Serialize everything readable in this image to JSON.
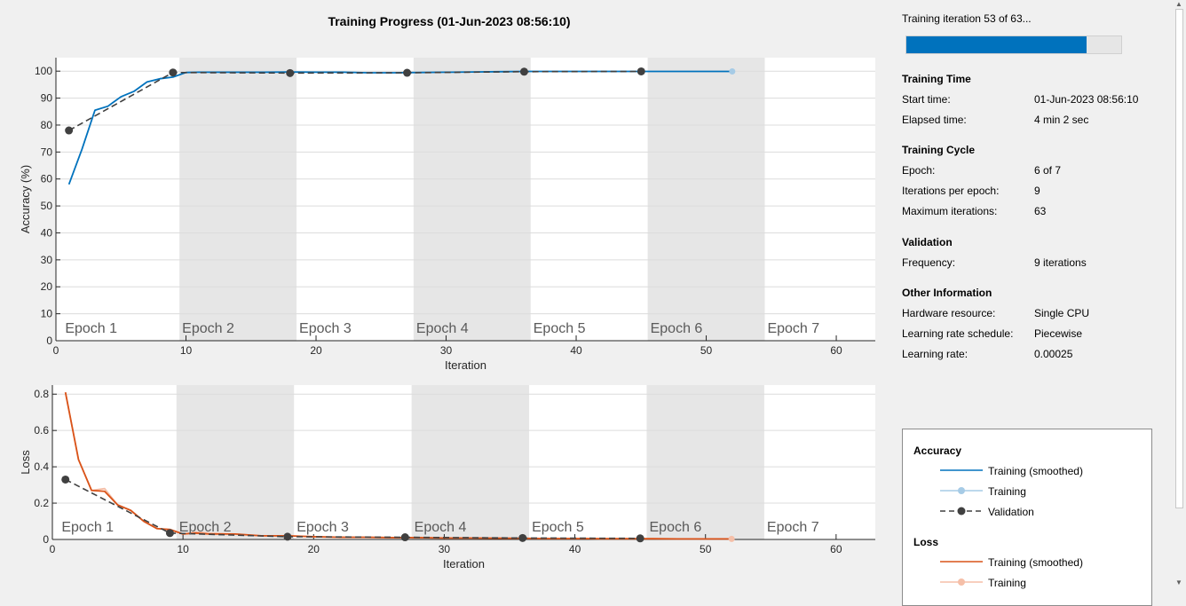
{
  "figure": {
    "title": "Training Progress (01-Jun-2023 08:56:10)"
  },
  "chart_data": [
    {
      "type": "line",
      "xlabel": "Iteration",
      "ylabel": "Accuracy (%)",
      "xlim": [
        0,
        63
      ],
      "ylim": [
        0,
        105
      ],
      "xticks": [
        "0",
        "10",
        "20",
        "30",
        "40",
        "50",
        "60"
      ],
      "yticks": [
        "0",
        "10",
        "20",
        "30",
        "40",
        "50",
        "60",
        "70",
        "80",
        "90",
        "100"
      ],
      "epoch_labels": [
        "Epoch 1",
        "Epoch 2",
        "Epoch 3",
        "Epoch 4",
        "Epoch 5",
        "Epoch 6",
        "Epoch 7"
      ],
      "grid": true,
      "series": [
        {
          "name": "Training (smoothed)",
          "color": "#0072bd",
          "x": [
            1,
            2,
            3,
            4,
            5,
            6,
            7,
            8,
            9,
            10,
            11,
            12,
            14,
            16,
            18,
            20,
            22,
            24,
            26,
            28,
            30,
            32,
            34,
            36,
            38,
            40,
            42,
            44,
            46,
            48,
            50,
            52
          ],
          "y": [
            58,
            71,
            85.5,
            87,
            90.5,
            92.5,
            96,
            97.2,
            97.8,
            99.5,
            99.6,
            99.6,
            99.6,
            99.6,
            99.7,
            99.6,
            99.6,
            99.4,
            99.4,
            99.5,
            99.6,
            99.7,
            99.8,
            99.9,
            99.9,
            99.9,
            99.9,
            99.9,
            99.9,
            99.9,
            99.9,
            99.9
          ]
        },
        {
          "name": "Validation",
          "color": "#404040",
          "style": "dashed-markers",
          "x": [
            1,
            9,
            18,
            27,
            36,
            45
          ],
          "y": [
            78,
            99.5,
            99.3,
            99.4,
            99.8,
            99.9
          ]
        }
      ],
      "final_point": {
        "x": 52,
        "y": 99.9,
        "color": "#a6cbe6"
      }
    },
    {
      "type": "line",
      "xlabel": "Iteration",
      "ylabel": "Loss",
      "xlim": [
        0,
        63
      ],
      "ylim": [
        0,
        0.85
      ],
      "xticks": [
        "0",
        "10",
        "20",
        "30",
        "40",
        "50",
        "60"
      ],
      "yticks": [
        "0",
        "0.2",
        "0.4",
        "0.6",
        "0.8"
      ],
      "epoch_labels": [
        "Epoch 1",
        "Epoch 2",
        "Epoch 3",
        "Epoch 4",
        "Epoch 5",
        "Epoch 6",
        "Epoch 7"
      ],
      "grid": true,
      "series": [
        {
          "name": "Training",
          "color": "#f5bfa8",
          "x": [
            1,
            2,
            3,
            4,
            5,
            6,
            7,
            8,
            9,
            10,
            11,
            12,
            14,
            16,
            18,
            20,
            22,
            24,
            26,
            28,
            30,
            32,
            34,
            36,
            38,
            40,
            42,
            44,
            46,
            48,
            50,
            52
          ],
          "y": [
            0.81,
            0.44,
            0.27,
            0.28,
            0.19,
            0.16,
            0.1,
            0.06,
            0.055,
            0.03,
            0.04,
            0.035,
            0.03,
            0.02,
            0.02,
            0.015,
            0.012,
            0.012,
            0.01,
            0.01,
            0.008,
            0.008,
            0.007,
            0.006,
            0.005,
            0.005,
            0.004,
            0.004,
            0.004,
            0.003,
            0.003,
            0.003
          ]
        },
        {
          "name": "Training (smoothed)",
          "color": "#d95319",
          "x": [
            1,
            2,
            3,
            4,
            5,
            6,
            7,
            8,
            9,
            10,
            11,
            12,
            14,
            16,
            18,
            20,
            22,
            24,
            26,
            28,
            30,
            32,
            34,
            36,
            38,
            40,
            42,
            44,
            46,
            48,
            50,
            52
          ],
          "y": [
            0.81,
            0.44,
            0.27,
            0.265,
            0.19,
            0.16,
            0.1,
            0.06,
            0.055,
            0.03,
            0.035,
            0.03,
            0.03,
            0.02,
            0.02,
            0.015,
            0.012,
            0.012,
            0.01,
            0.01,
            0.008,
            0.008,
            0.007,
            0.006,
            0.005,
            0.005,
            0.004,
            0.004,
            0.004,
            0.003,
            0.003,
            0.003
          ]
        },
        {
          "name": "Validation",
          "color": "#404040",
          "style": "dashed-markers",
          "x": [
            1,
            9,
            18,
            27,
            36,
            45
          ],
          "y": [
            0.33,
            0.035,
            0.015,
            0.012,
            0.008,
            0.006
          ]
        }
      ],
      "final_point": {
        "x": 52,
        "y": 0.003,
        "color": "#f5bfa8"
      }
    }
  ],
  "panel": {
    "status": "Training iteration 53 of 63...",
    "progress": 0.84,
    "progress_color": "#0072bd",
    "sections": [
      {
        "title": "Training Time",
        "rows": [
          {
            "key": "Start time:",
            "value": "01-Jun-2023 08:56:10"
          },
          {
            "key": "Elapsed time:",
            "value": "4 min 2 sec"
          }
        ]
      },
      {
        "title": "Training Cycle",
        "rows": [
          {
            "key": "Epoch:",
            "value": "6 of 7"
          },
          {
            "key": "Iterations per epoch:",
            "value": "9"
          },
          {
            "key": "Maximum iterations:",
            "value": "63"
          }
        ]
      },
      {
        "title": "Validation",
        "rows": [
          {
            "key": "Frequency:",
            "value": "9 iterations"
          }
        ]
      },
      {
        "title": "Other Information",
        "rows": [
          {
            "key": "Hardware resource:",
            "value": "Single CPU"
          },
          {
            "key": "Learning rate schedule:",
            "value": "Piecewise"
          },
          {
            "key": "Learning rate:",
            "value": "0.00025"
          }
        ]
      }
    ]
  },
  "legend": {
    "accuracy_title": "Accuracy",
    "accuracy_items": [
      {
        "label": "Training (smoothed)",
        "color": "#0072bd",
        "style": "line"
      },
      {
        "label": "Training",
        "color": "#a6cbe6",
        "style": "line-marker"
      },
      {
        "label": "Validation",
        "color": "#404040",
        "style": "dashed-marker"
      }
    ],
    "loss_title": "Loss",
    "loss_items": [
      {
        "label": "Training (smoothed)",
        "color": "#d95319",
        "style": "line"
      },
      {
        "label": "Training",
        "color": "#f5bfa8",
        "style": "line-marker"
      }
    ]
  }
}
